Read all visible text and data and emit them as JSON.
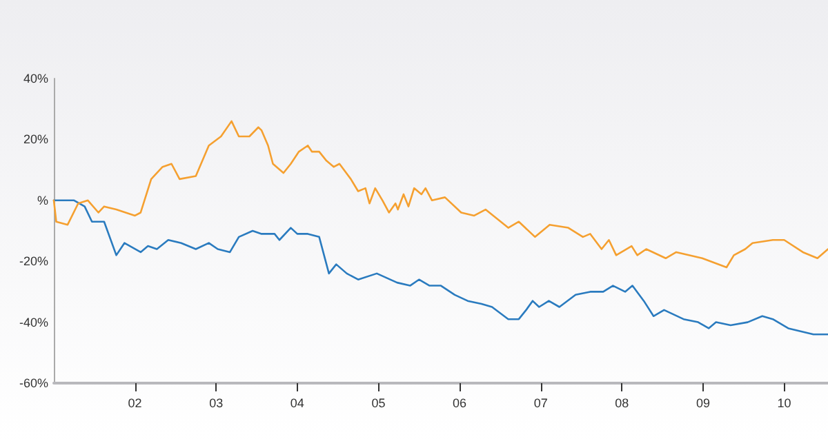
{
  "chart_data": {
    "type": "line",
    "xlim": [
      1,
      10.54
    ],
    "ylim": [
      -60,
      40
    ],
    "xticks": [
      {
        "value": 2,
        "label": "02"
      },
      {
        "value": 3,
        "label": "03"
      },
      {
        "value": 4,
        "label": "04"
      },
      {
        "value": 5,
        "label": "05"
      },
      {
        "value": 6,
        "label": "06"
      },
      {
        "value": 7,
        "label": "07"
      },
      {
        "value": 8,
        "label": "08"
      },
      {
        "value": 9,
        "label": "09"
      },
      {
        "value": 10,
        "label": "10"
      }
    ],
    "yticks": [
      {
        "value": -60,
        "label": "-60%"
      },
      {
        "value": -40,
        "label": "-40%"
      },
      {
        "value": -20,
        "label": "-20%"
      },
      {
        "value": 0,
        "label": "%"
      },
      {
        "value": 20,
        "label": "20%"
      },
      {
        "value": 40,
        "label": "40%"
      }
    ],
    "grid": false,
    "marker": "none",
    "line_style": "solid",
    "series": [
      {
        "color": "#2a7bbf",
        "x": [
          1.0,
          1.25,
          1.38,
          1.47,
          1.62,
          1.77,
          1.87,
          2.07,
          2.16,
          2.27,
          2.41,
          2.57,
          2.75,
          2.91,
          3.02,
          3.17,
          3.28,
          3.45,
          3.56,
          3.72,
          3.78,
          3.92,
          4.0,
          4.13,
          4.27,
          4.39,
          4.48,
          4.61,
          4.75,
          4.98,
          5.23,
          5.39,
          5.5,
          5.63,
          5.77,
          5.94,
          6.1,
          6.27,
          6.4,
          6.6,
          6.73,
          6.82,
          6.9,
          6.98,
          7.1,
          7.23,
          7.43,
          7.61,
          7.77,
          7.89,
          8.04,
          8.13,
          8.27,
          8.39,
          8.52,
          8.76,
          8.94,
          9.07,
          9.16,
          9.34,
          9.55,
          9.73,
          9.86,
          10.05,
          10.36,
          10.54
        ],
        "values": [
          0,
          0,
          -2,
          -7,
          -7,
          -18,
          -14,
          -17,
          -15,
          -16,
          -13,
          -14,
          -16,
          -14,
          -16,
          -17,
          -12,
          -10,
          -11,
          -11,
          -13,
          -9,
          -11,
          -11,
          -12,
          -24,
          -21,
          -24,
          -26,
          -24,
          -27,
          -28,
          -26,
          -28,
          -28,
          -31,
          -33,
          -34,
          -35,
          -39,
          -39,
          -36,
          -33,
          -35,
          -33,
          -35,
          -31,
          -30,
          -30,
          -28,
          -30,
          -28,
          -33,
          -38,
          -36,
          -39,
          -40,
          -42,
          -40,
          -41,
          -40,
          -38,
          -39,
          -42,
          -44,
          -44
        ]
      },
      {
        "color": "#f5a030",
        "x": [
          1.0,
          1.03,
          1.17,
          1.3,
          1.42,
          1.55,
          1.62,
          1.77,
          2.0,
          2.07,
          2.2,
          2.34,
          2.45,
          2.55,
          2.75,
          2.91,
          3.06,
          3.19,
          3.28,
          3.41,
          3.52,
          3.56,
          3.64,
          3.7,
          3.83,
          3.92,
          4.02,
          4.13,
          4.18,
          4.27,
          4.36,
          4.45,
          4.52,
          4.66,
          4.75,
          4.84,
          4.89,
          4.96,
          5.05,
          5.13,
          5.21,
          5.24,
          5.31,
          5.37,
          5.44,
          5.53,
          5.58,
          5.66,
          5.82,
          6.02,
          6.18,
          6.32,
          6.6,
          6.73,
          6.93,
          7.11,
          7.34,
          7.52,
          7.61,
          7.75,
          7.84,
          7.93,
          8.12,
          8.19,
          8.3,
          8.54,
          8.67,
          8.99,
          9.29,
          9.38,
          9.52,
          9.61,
          9.86,
          10.0,
          10.23,
          10.41,
          10.54
        ],
        "values": [
          0,
          -7,
          -8,
          -1,
          0,
          -4,
          -2,
          -3,
          -5,
          -4,
          7,
          11,
          12,
          7,
          8,
          18,
          21,
          26,
          21,
          21,
          24,
          23,
          18,
          12,
          9,
          12,
          16,
          18,
          16,
          16,
          13,
          11,
          12,
          7,
          3,
          4,
          -1,
          4,
          0,
          -4,
          -1,
          -3,
          2,
          -2,
          4,
          2,
          4,
          0,
          1,
          -4,
          -5,
          -3,
          -9,
          -7,
          -12,
          -8,
          -9,
          -12,
          -11,
          -16,
          -13,
          -18,
          -15,
          -18,
          -16,
          -19,
          -17,
          -19,
          -22,
          -18,
          -16,
          -14,
          -13,
          -13,
          -17,
          -19,
          -16
        ]
      }
    ]
  }
}
